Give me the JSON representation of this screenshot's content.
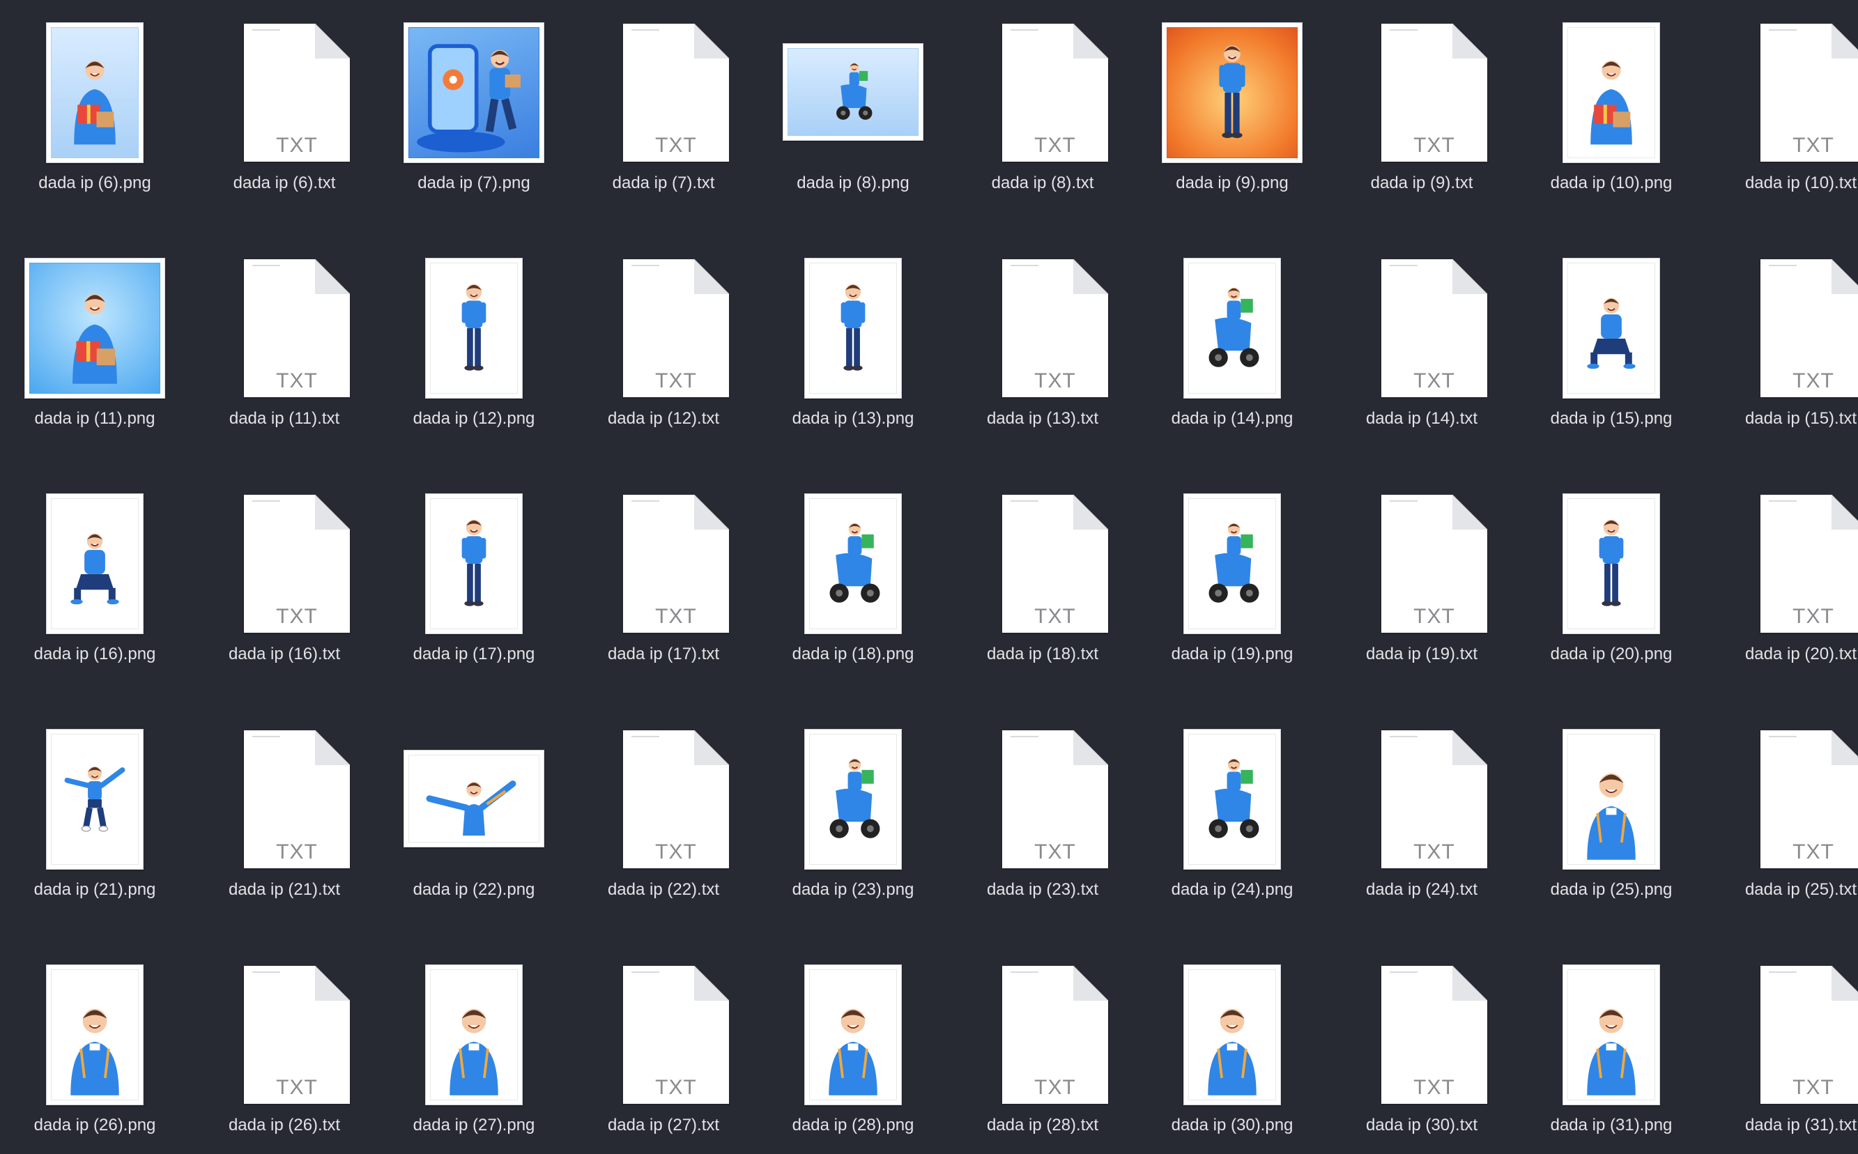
{
  "files": [
    {
      "name": "dada ip (6).png",
      "kind": "png",
      "orientation": "portrait",
      "bg": "sky",
      "pose": "gift"
    },
    {
      "name": "dada ip (6).txt",
      "kind": "txt",
      "ext": "TXT"
    },
    {
      "name": "dada ip (7).png",
      "kind": "png",
      "orientation": "square",
      "bg": "blue",
      "pose": "phone"
    },
    {
      "name": "dada ip (7).txt",
      "kind": "txt",
      "ext": "TXT"
    },
    {
      "name": "dada ip (8).png",
      "kind": "png",
      "orientation": "landscape",
      "bg": "sky",
      "pose": "scooter"
    },
    {
      "name": "dada ip (8).txt",
      "kind": "txt",
      "ext": "TXT"
    },
    {
      "name": "dada ip (9).png",
      "kind": "png",
      "orientation": "square",
      "bg": "orange",
      "pose": "stand"
    },
    {
      "name": "dada ip (9).txt",
      "kind": "txt",
      "ext": "TXT"
    },
    {
      "name": "dada ip (10).png",
      "kind": "png",
      "orientation": "portrait",
      "bg": "white",
      "pose": "gift"
    },
    {
      "name": "dada ip (10).txt",
      "kind": "txt",
      "ext": "TXT"
    },
    {
      "name": "dada ip (11).png",
      "kind": "png",
      "orientation": "square",
      "bg": "cyan",
      "pose": "gift"
    },
    {
      "name": "dada ip (11).txt",
      "kind": "txt",
      "ext": "TXT"
    },
    {
      "name": "dada ip (12).png",
      "kind": "png",
      "orientation": "portrait",
      "bg": "white",
      "pose": "stand"
    },
    {
      "name": "dada ip (12).txt",
      "kind": "txt",
      "ext": "TXT"
    },
    {
      "name": "dada ip (13).png",
      "kind": "png",
      "orientation": "portrait",
      "bg": "white",
      "pose": "stand"
    },
    {
      "name": "dada ip (13).txt",
      "kind": "txt",
      "ext": "TXT"
    },
    {
      "name": "dada ip (14).png",
      "kind": "png",
      "orientation": "portrait",
      "bg": "white",
      "pose": "scooter"
    },
    {
      "name": "dada ip (14).txt",
      "kind": "txt",
      "ext": "TXT"
    },
    {
      "name": "dada ip (15).png",
      "kind": "png",
      "orientation": "portrait",
      "bg": "white",
      "pose": "sit"
    },
    {
      "name": "dada ip (15).txt",
      "kind": "txt",
      "ext": "TXT"
    },
    {
      "name": "dada ip (16).png",
      "kind": "png",
      "orientation": "portrait",
      "bg": "white",
      "pose": "sit"
    },
    {
      "name": "dada ip (16).txt",
      "kind": "txt",
      "ext": "TXT"
    },
    {
      "name": "dada ip (17).png",
      "kind": "png",
      "orientation": "portrait",
      "bg": "white",
      "pose": "stand"
    },
    {
      "name": "dada ip (17).txt",
      "kind": "txt",
      "ext": "TXT"
    },
    {
      "name": "dada ip (18).png",
      "kind": "png",
      "orientation": "portrait",
      "bg": "white",
      "pose": "scooter"
    },
    {
      "name": "dada ip (18).txt",
      "kind": "txt",
      "ext": "TXT"
    },
    {
      "name": "dada ip (19).png",
      "kind": "png",
      "orientation": "portrait",
      "bg": "white",
      "pose": "scooter"
    },
    {
      "name": "dada ip (19).txt",
      "kind": "txt",
      "ext": "TXT"
    },
    {
      "name": "dada ip (20).png",
      "kind": "png",
      "orientation": "portrait",
      "bg": "white",
      "pose": "stand"
    },
    {
      "name": "dada ip (20).txt",
      "kind": "txt",
      "ext": "TXT"
    },
    {
      "name": "dada ip (21).png",
      "kind": "png",
      "orientation": "portrait",
      "bg": "white",
      "pose": "jump"
    },
    {
      "name": "dada ip (21).txt",
      "kind": "txt",
      "ext": "TXT"
    },
    {
      "name": "dada ip (22).png",
      "kind": "png",
      "orientation": "landscape",
      "bg": "white",
      "pose": "arms"
    },
    {
      "name": "dada ip (22).txt",
      "kind": "txt",
      "ext": "TXT"
    },
    {
      "name": "dada ip (23).png",
      "kind": "png",
      "orientation": "portrait",
      "bg": "white",
      "pose": "scooter"
    },
    {
      "name": "dada ip (23).txt",
      "kind": "txt",
      "ext": "TXT"
    },
    {
      "name": "dada ip (24).png",
      "kind": "png",
      "orientation": "portrait",
      "bg": "white",
      "pose": "scooter"
    },
    {
      "name": "dada ip (24).txt",
      "kind": "txt",
      "ext": "TXT"
    },
    {
      "name": "dada ip (25).png",
      "kind": "png",
      "orientation": "portrait",
      "bg": "white",
      "pose": "bust"
    },
    {
      "name": "dada ip (25).txt",
      "kind": "txt",
      "ext": "TXT"
    },
    {
      "name": "dada ip (26).png",
      "kind": "png",
      "orientation": "portrait",
      "bg": "white",
      "pose": "bust"
    },
    {
      "name": "dada ip (26).txt",
      "kind": "txt",
      "ext": "TXT"
    },
    {
      "name": "dada ip (27).png",
      "kind": "png",
      "orientation": "portrait",
      "bg": "white",
      "pose": "bust"
    },
    {
      "name": "dada ip (27).txt",
      "kind": "txt",
      "ext": "TXT"
    },
    {
      "name": "dada ip (28).png",
      "kind": "png",
      "orientation": "portrait",
      "bg": "white",
      "pose": "bust"
    },
    {
      "name": "dada ip (28).txt",
      "kind": "txt",
      "ext": "TXT"
    },
    {
      "name": "dada ip (30).png",
      "kind": "png",
      "orientation": "portrait",
      "bg": "white",
      "pose": "bust"
    },
    {
      "name": "dada ip (30).txt",
      "kind": "txt",
      "ext": "TXT"
    },
    {
      "name": "dada ip (31).png",
      "kind": "png",
      "orientation": "portrait",
      "bg": "white",
      "pose": "bust"
    },
    {
      "name": "dada ip (31).txt",
      "kind": "txt",
      "ext": "TXT"
    }
  ],
  "colors": {
    "background": "#282a33",
    "label": "#e2e3e7",
    "uniform_blue": "#2f86e6",
    "pants_navy": "#1f3d7a",
    "box_green": "#36b45a",
    "ext_gray": "#8a8a8e"
  }
}
